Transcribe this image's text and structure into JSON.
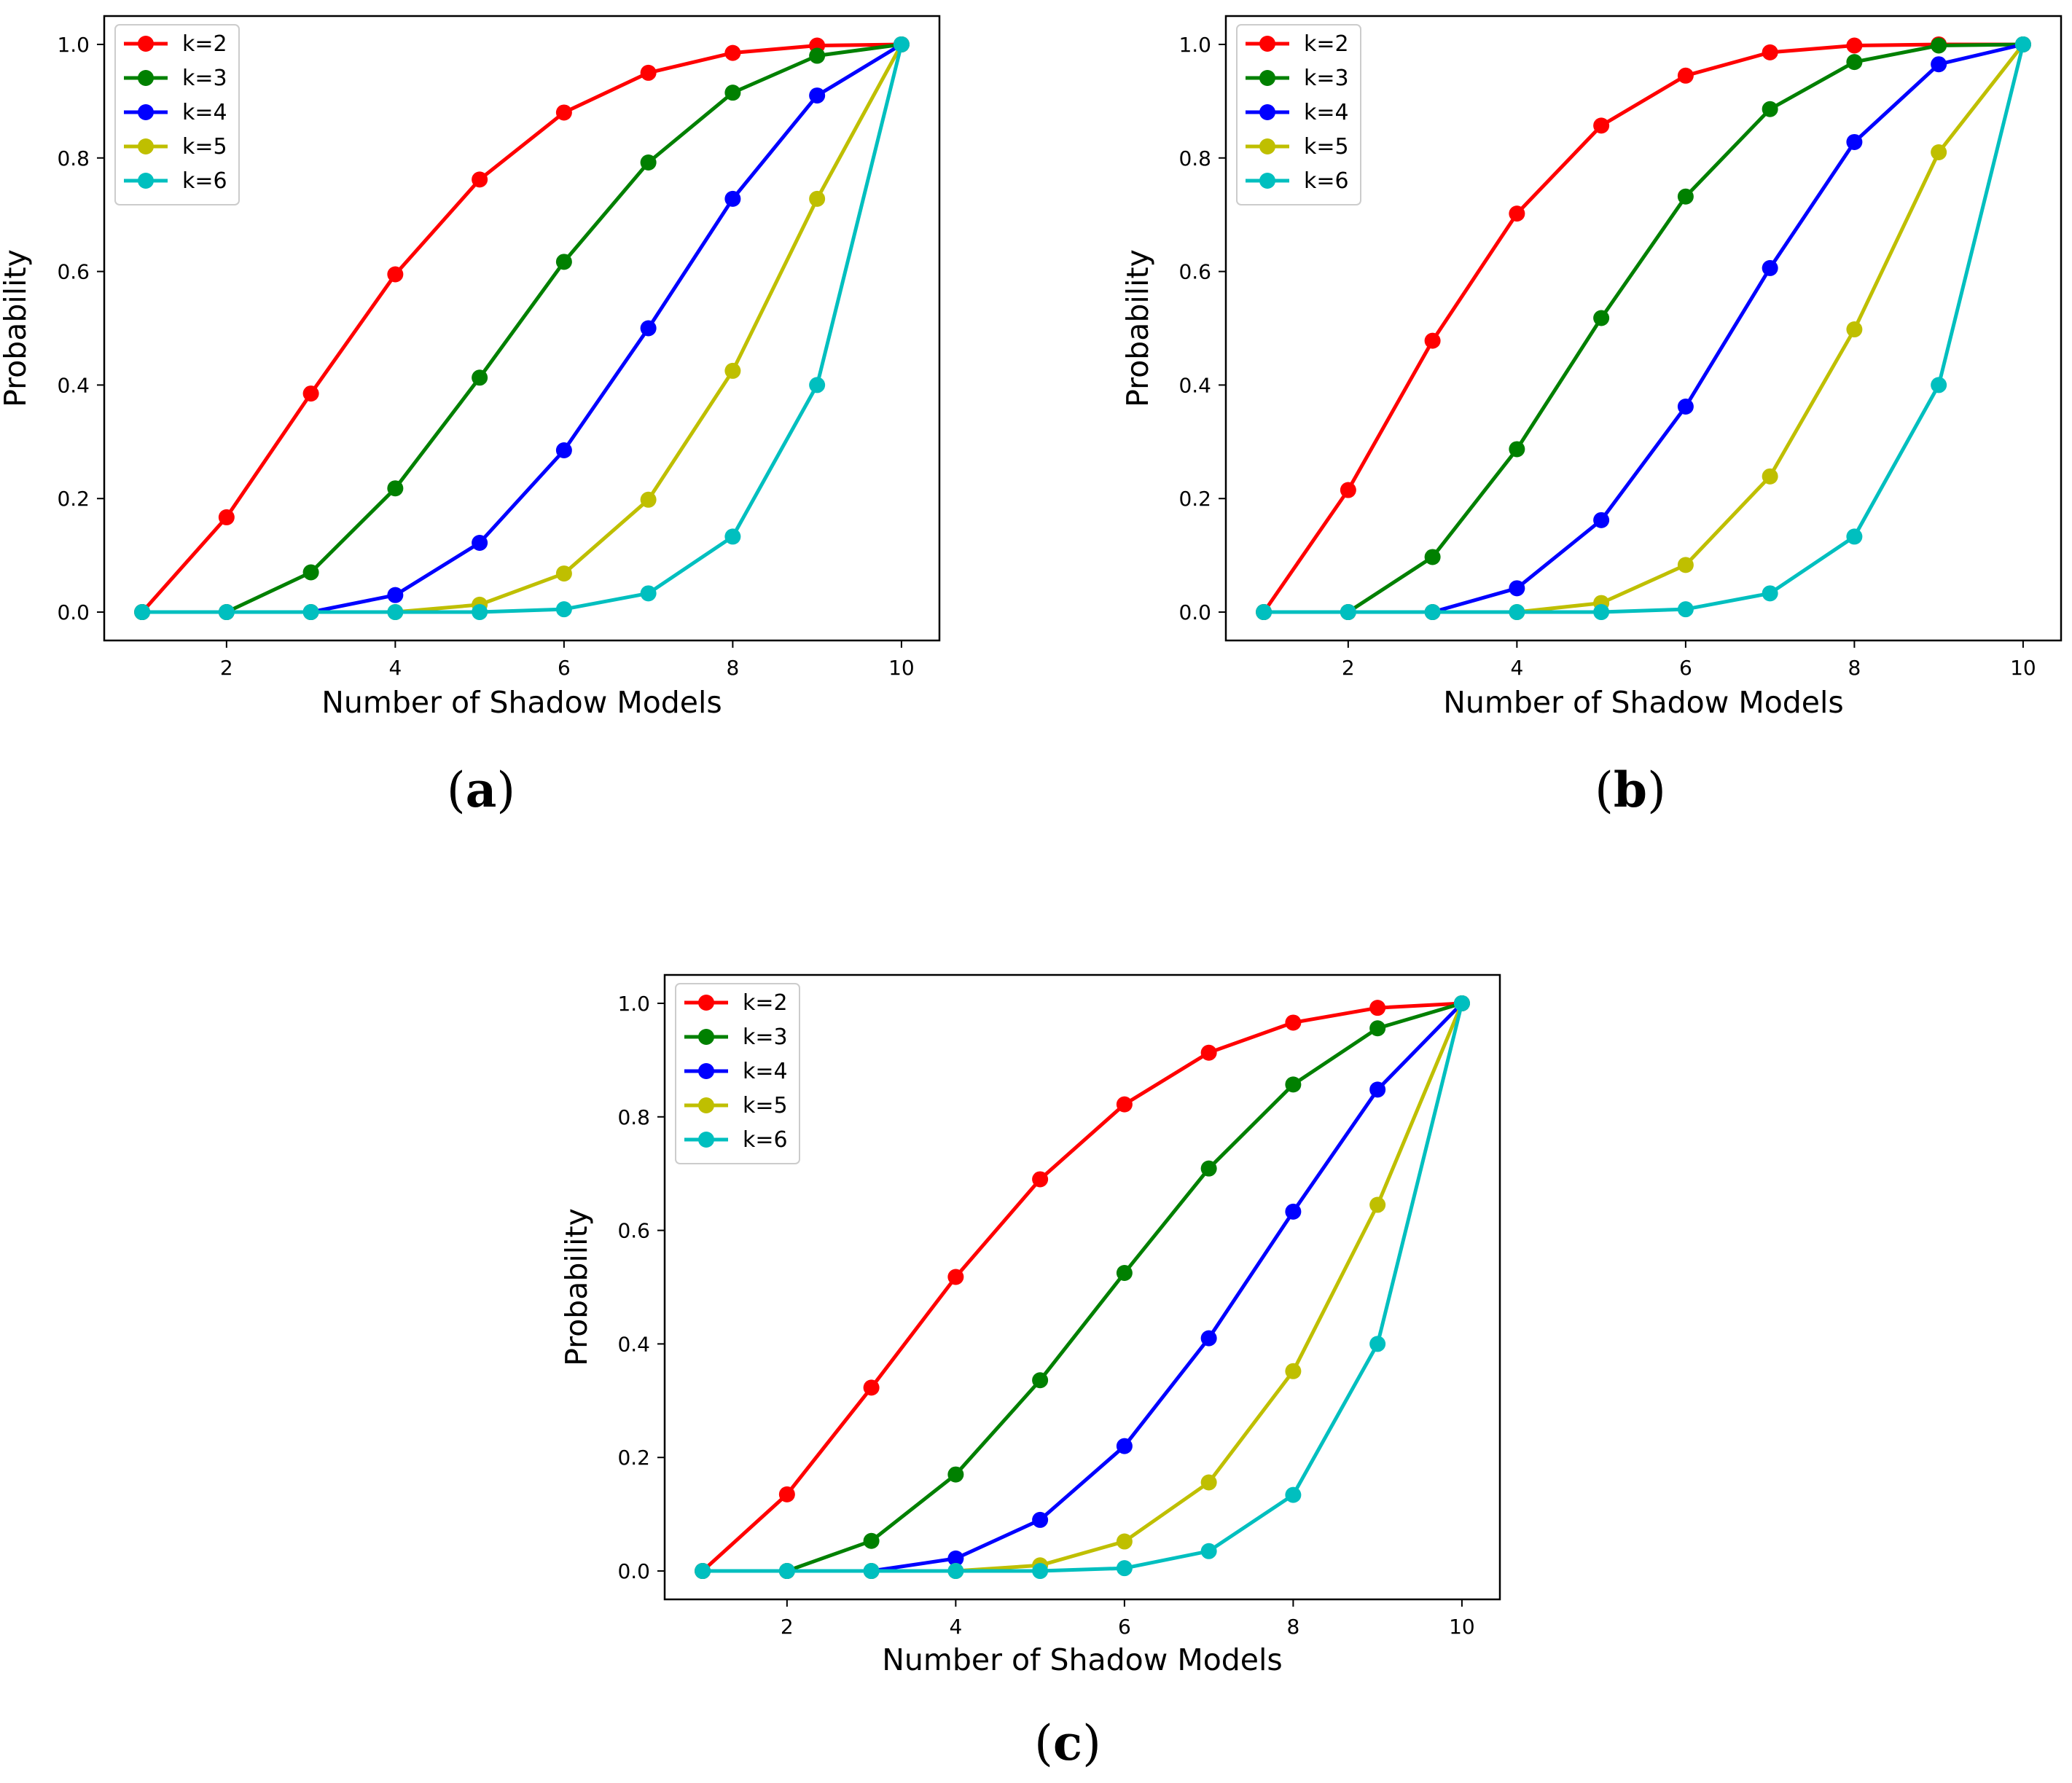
{
  "figure": {
    "panels": [
      {
        "caption_open": "(",
        "caption_letter": "a",
        "caption_close": ")"
      },
      {
        "caption_open": "(",
        "caption_letter": "b",
        "caption_close": ")"
      },
      {
        "caption_open": "(",
        "caption_letter": "c",
        "caption_close": ")"
      }
    ]
  },
  "chart_data": [
    {
      "type": "line",
      "xlabel": "Number of Shadow Models",
      "ylabel": "Probability",
      "x": [
        1,
        2,
        3,
        4,
        5,
        6,
        7,
        8,
        9,
        10
      ],
      "xticks": [
        2,
        4,
        6,
        8,
        10
      ],
      "yticks": [
        "0.0",
        "0.2",
        "0.4",
        "0.6",
        "0.8",
        "1.0"
      ],
      "xlim": [
        0.55,
        10.45
      ],
      "ylim": [
        -0.05,
        1.05
      ],
      "legend_position": "top-left",
      "grid": false,
      "series": [
        {
          "name": "k=2",
          "color": "#ff0000",
          "values": [
            0.0,
            0.167,
            0.385,
            0.595,
            0.762,
            0.88,
            0.95,
            0.985,
            0.998,
            1.0
          ]
        },
        {
          "name": "k=3",
          "color": "#008000",
          "values": [
            0.0,
            0.0,
            0.07,
            0.218,
            0.413,
            0.617,
            0.792,
            0.915,
            0.98,
            1.0
          ]
        },
        {
          "name": "k=4",
          "color": "#0000ff",
          "values": [
            0.0,
            0.0,
            0.0,
            0.03,
            0.122,
            0.285,
            0.5,
            0.728,
            0.91,
            1.0
          ]
        },
        {
          "name": "k=5",
          "color": "#bfbf00",
          "values": [
            0.0,
            0.0,
            0.0,
            0.0,
            0.013,
            0.068,
            0.198,
            0.425,
            0.728,
            1.0
          ]
        },
        {
          "name": "k=6",
          "color": "#00bfbf",
          "values": [
            0.0,
            0.0,
            0.0,
            0.0,
            0.0,
            0.005,
            0.033,
            0.133,
            0.4,
            1.0
          ]
        }
      ]
    },
    {
      "type": "line",
      "xlabel": "Number of Shadow Models",
      "ylabel": "Probability",
      "x": [
        1,
        2,
        3,
        4,
        5,
        6,
        7,
        8,
        9,
        10
      ],
      "xticks": [
        2,
        4,
        6,
        8,
        10
      ],
      "yticks": [
        "0.0",
        "0.2",
        "0.4",
        "0.6",
        "0.8",
        "1.0"
      ],
      "xlim": [
        0.55,
        10.45
      ],
      "ylim": [
        -0.05,
        1.05
      ],
      "legend_position": "top-left",
      "grid": false,
      "series": [
        {
          "name": "k=2",
          "color": "#ff0000",
          "values": [
            0.0,
            0.215,
            0.478,
            0.702,
            0.857,
            0.945,
            0.986,
            0.998,
            1.0,
            1.0
          ]
        },
        {
          "name": "k=3",
          "color": "#008000",
          "values": [
            0.0,
            0.0,
            0.097,
            0.287,
            0.518,
            0.732,
            0.886,
            0.969,
            0.998,
            1.0
          ]
        },
        {
          "name": "k=4",
          "color": "#0000ff",
          "values": [
            0.0,
            0.0,
            0.0,
            0.042,
            0.162,
            0.362,
            0.606,
            0.828,
            0.965,
            1.0
          ]
        },
        {
          "name": "k=5",
          "color": "#bfbf00",
          "values": [
            0.0,
            0.0,
            0.0,
            0.0,
            0.016,
            0.083,
            0.239,
            0.498,
            0.81,
            1.0
          ]
        },
        {
          "name": "k=6",
          "color": "#00bfbf",
          "values": [
            0.0,
            0.0,
            0.0,
            0.0,
            0.0,
            0.005,
            0.033,
            0.133,
            0.4,
            1.0
          ]
        }
      ]
    },
    {
      "type": "line",
      "xlabel": "Number of Shadow Models",
      "ylabel": "Probability",
      "x": [
        1,
        2,
        3,
        4,
        5,
        6,
        7,
        8,
        9,
        10
      ],
      "xticks": [
        2,
        4,
        6,
        8,
        10
      ],
      "yticks": [
        "0.0",
        "0.2",
        "0.4",
        "0.6",
        "0.8",
        "1.0"
      ],
      "xlim": [
        0.55,
        10.45
      ],
      "ylim": [
        -0.05,
        1.05
      ],
      "legend_position": "top-left",
      "grid": false,
      "series": [
        {
          "name": "k=2",
          "color": "#ff0000",
          "values": [
            0.0,
            0.135,
            0.323,
            0.518,
            0.69,
            0.822,
            0.913,
            0.966,
            0.992,
            1.0
          ]
        },
        {
          "name": "k=3",
          "color": "#008000",
          "values": [
            0.0,
            0.0,
            0.053,
            0.17,
            0.336,
            0.525,
            0.709,
            0.857,
            0.956,
            1.0
          ]
        },
        {
          "name": "k=4",
          "color": "#0000ff",
          "values": [
            0.0,
            0.0,
            0.0,
            0.022,
            0.09,
            0.22,
            0.41,
            0.633,
            0.848,
            1.0
          ]
        },
        {
          "name": "k=5",
          "color": "#bfbf00",
          "values": [
            0.0,
            0.0,
            0.0,
            0.0,
            0.01,
            0.052,
            0.156,
            0.352,
            0.645,
            1.0
          ]
        },
        {
          "name": "k=6",
          "color": "#00bfbf",
          "values": [
            0.0,
            0.0,
            0.0,
            0.0,
            0.0,
            0.005,
            0.035,
            0.134,
            0.4,
            1.0
          ]
        }
      ]
    }
  ]
}
